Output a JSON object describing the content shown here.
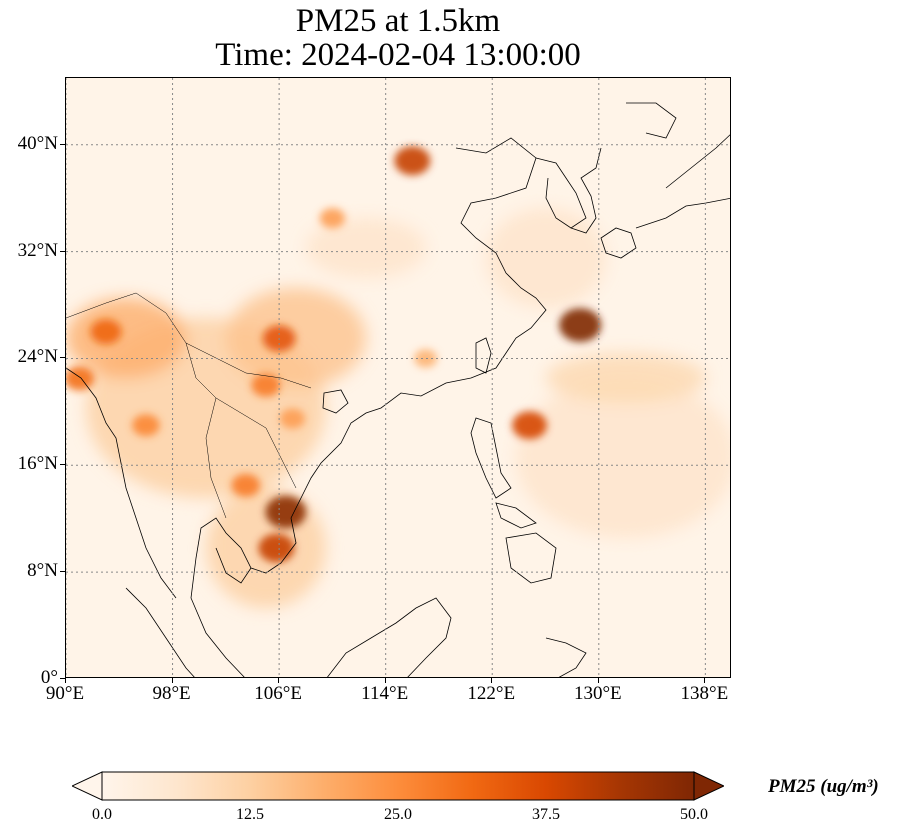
{
  "title": {
    "line1": "PM25 at 1.5km",
    "line2": "Time: 2024-02-04 13:00:00"
  },
  "map": {
    "lon_range": [
      90,
      140
    ],
    "lat_range": [
      0,
      45
    ],
    "lat_ticks": [
      {
        "value": 40,
        "label": "40°N"
      },
      {
        "value": 32,
        "label": "32°N"
      },
      {
        "value": 24,
        "label": "24°N"
      },
      {
        "value": 16,
        "label": "16°N"
      },
      {
        "value": 8,
        "label": "8°N"
      },
      {
        "value": 0,
        "label": "0°"
      }
    ],
    "lon_ticks": [
      {
        "value": 90,
        "label": "90°E"
      },
      {
        "value": 98,
        "label": "98°E"
      },
      {
        "value": 106,
        "label": "106°E"
      },
      {
        "value": 114,
        "label": "114°E"
      },
      {
        "value": 122,
        "label": "122°E"
      },
      {
        "value": 130,
        "label": "130°E"
      },
      {
        "value": 138,
        "label": "138°E"
      }
    ],
    "gridlines": "dotted gray",
    "coastline_color": "#000000",
    "hotspots": [
      {
        "lon": 116,
        "lat": 38.8,
        "value": 40
      },
      {
        "lon": 106,
        "lat": 25.5,
        "value": 35
      },
      {
        "lon": 105,
        "lat": 22,
        "value": 28
      },
      {
        "lon": 107,
        "lat": 19.5,
        "value": 22
      },
      {
        "lon": 106.5,
        "lat": 12.5,
        "value": 48
      },
      {
        "lon": 105.8,
        "lat": 9.8,
        "value": 40
      },
      {
        "lon": 103.5,
        "lat": 14.5,
        "value": 28
      },
      {
        "lon": 93,
        "lat": 26,
        "value": 32
      },
      {
        "lon": 91,
        "lat": 22.5,
        "value": 30
      },
      {
        "lon": 96,
        "lat": 19,
        "value": 26
      },
      {
        "lon": 128.6,
        "lat": 26.5,
        "value": 50
      },
      {
        "lon": 124.8,
        "lat": 19,
        "value": 38
      },
      {
        "lon": 110,
        "lat": 34.5,
        "value": 22
      },
      {
        "lon": 117,
        "lat": 24,
        "value": 18
      }
    ]
  },
  "colorbar": {
    "label": "PM25 (ug/m³)",
    "ticks": [
      "0.0",
      "12.5",
      "25.0",
      "37.5",
      "50.0"
    ],
    "min": 0,
    "max": 50,
    "colormap": [
      "#fff5eb",
      "#fee6ce",
      "#fdd0a2",
      "#fdae6b",
      "#fd8d3c",
      "#f16913",
      "#d94801",
      "#a63603",
      "#7f2704"
    ],
    "extend": "both"
  }
}
